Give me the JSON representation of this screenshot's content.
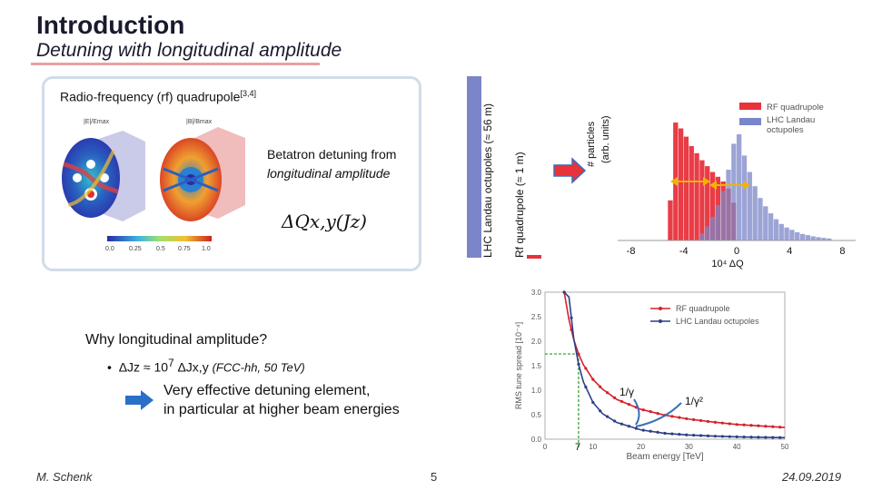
{
  "header": {
    "title": "Introduction",
    "subtitle": "Detuning with longitudinal amplitude"
  },
  "rf_box": {
    "heading": "Radio-frequency (rf) quadrupole",
    "heading_ref": "[3,4]",
    "betatron_text": "Betatron detuning from ",
    "betatron_em": "longitudinal amplitude",
    "formula": "ΔQx,y(Jz)",
    "field_label_1": "|E|/Emax",
    "field_label_2": "|B|/Bmax",
    "colorbar_ticks": [
      "0.0",
      "0.25",
      "0.5",
      "0.75",
      "1.0"
    ]
  },
  "bar_labels": {
    "lhc_octupoles": "LHC Landau octupoles (≈ 56 m)",
    "rf_quadrupole": "Rf quadrupole (≈ 1 m)"
  },
  "bullets": {
    "why": "Why longitudinal amplitude?",
    "bullet_main": "ΔJz ≈ 10",
    "bullet_exp": "7",
    "bullet_tail": " ΔJx,y",
    "bullet_note": "(FCC-hh, 50 TeV)",
    "effective_1": "Very effective detuning element,",
    "effective_2": "in particular at higher beam energies"
  },
  "colors": {
    "rf_red": "#e8323c",
    "lhc_blue": "#7b86c8",
    "overlap": "#7a2a55",
    "arrow_blue": "#3a6fb7",
    "arrow_orange": "#f0b400",
    "line_red": "#d6202a",
    "line_blue": "#2c3f86",
    "dash_green": "#2a9a2a"
  },
  "chart_data": [
    {
      "type": "bar",
      "ylabel_1": "# particles",
      "ylabel_2": "(arb. units)",
      "xlabel": "10⁴ ΔQ",
      "x_ticks": [
        "-8",
        "-4",
        "0",
        "4",
        "8"
      ],
      "series": [
        {
          "name": "RF quadrupole",
          "x": [
            -5.0,
            -4.6,
            -4.2,
            -3.8,
            -3.4,
            -3.0,
            -2.6,
            -2.2,
            -1.8,
            -1.4,
            -1.0,
            -0.6,
            -0.2
          ],
          "values": [
            0.34,
            1.0,
            0.95,
            0.88,
            0.8,
            0.74,
            0.68,
            0.63,
            0.58,
            0.54,
            0.5,
            0.44,
            0.32
          ]
        },
        {
          "name": "LHC Landau octupoles",
          "x": [
            -2.6,
            -2.2,
            -1.8,
            -1.4,
            -1.0,
            -0.6,
            -0.2,
            0.2,
            0.6,
            1.0,
            1.4,
            1.8,
            2.2,
            2.6,
            3.0,
            3.4,
            3.8,
            4.2,
            4.6,
            5.0,
            5.4,
            5.8,
            6.2,
            6.6,
            7.0
          ],
          "values": [
            0.06,
            0.12,
            0.2,
            0.3,
            0.42,
            0.6,
            0.82,
            0.9,
            0.72,
            0.58,
            0.46,
            0.36,
            0.29,
            0.23,
            0.18,
            0.14,
            0.11,
            0.09,
            0.07,
            0.055,
            0.045,
            0.035,
            0.028,
            0.022,
            0.017
          ]
        }
      ],
      "xlim": [
        -9,
        9
      ]
    },
    {
      "type": "line",
      "xlabel": "Beam energy [TeV]",
      "ylabel": "RMS tune spread [10⁻⁴]",
      "xlim": [
        0,
        50
      ],
      "ylim": [
        0.0,
        3.0
      ],
      "x_ticks": [
        "0",
        "10",
        "20",
        "30",
        "40",
        "50"
      ],
      "y_ticks": [
        "0.0",
        "0.5",
        "1.0",
        "1.5",
        "2.0",
        "2.5",
        "3.0"
      ],
      "marker_label": "7",
      "annotation_1": "1/γ",
      "annotation_2": "1/γ²",
      "series": [
        {
          "name": "RF quadrupole",
          "x": [
            4,
            5,
            6,
            7,
            8,
            10,
            12,
            15,
            20,
            25,
            30,
            35,
            40,
            45,
            50
          ],
          "values": [
            3.0,
            2.44,
            2.03,
            1.74,
            1.52,
            1.22,
            1.02,
            0.81,
            0.61,
            0.49,
            0.41,
            0.35,
            0.3,
            0.27,
            0.24
          ]
        },
        {
          "name": "LHC Landau octupoles",
          "x": [
            4,
            5,
            6,
            7,
            8,
            10,
            12,
            15,
            20,
            25,
            30,
            35,
            40,
            45,
            50
          ],
          "values": [
            3.0,
            2.9,
            2.05,
            1.53,
            1.17,
            0.75,
            0.52,
            0.34,
            0.19,
            0.12,
            0.085,
            0.063,
            0.048,
            0.038,
            0.031
          ]
        }
      ]
    }
  ],
  "footer": {
    "author": "M. Schenk",
    "page": "5",
    "date": "24.09.2019"
  }
}
